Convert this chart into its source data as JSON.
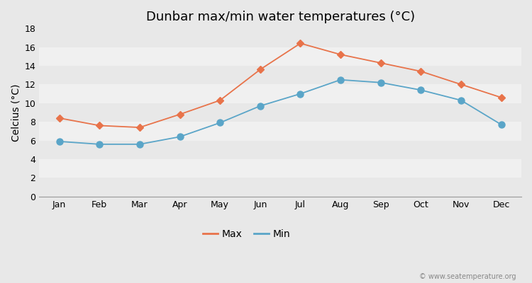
{
  "title": "Dunbar max/min water temperatures (°C)",
  "months": [
    "Jan",
    "Feb",
    "Mar",
    "Apr",
    "May",
    "Jun",
    "Jul",
    "Aug",
    "Sep",
    "Oct",
    "Nov",
    "Dec"
  ],
  "max_values": [
    8.4,
    7.6,
    7.4,
    8.8,
    10.3,
    13.6,
    16.4,
    15.2,
    14.3,
    13.4,
    12.0,
    10.6
  ],
  "min_values": [
    5.9,
    5.6,
    5.6,
    6.4,
    7.9,
    9.7,
    11.0,
    12.5,
    12.2,
    11.4,
    10.3,
    7.7
  ],
  "max_color": "#e8734a",
  "min_color": "#5aa5c8",
  "max_label": "Max",
  "min_label": "Min",
  "ylabel": "Celcius (°C)",
  "ylim": [
    0,
    18
  ],
  "yticks": [
    0,
    2,
    4,
    6,
    8,
    10,
    12,
    14,
    16,
    18
  ],
  "fig_bg_color": "#e8e8e8",
  "plot_bg_color": "#f0f0f0",
  "band_colors": [
    "#e8e8e8",
    "#f0f0f0"
  ],
  "grid_color": "#e0e0e0",
  "watermark": "© www.seatemperature.org",
  "title_fontsize": 13,
  "label_fontsize": 10,
  "tick_fontsize": 9
}
